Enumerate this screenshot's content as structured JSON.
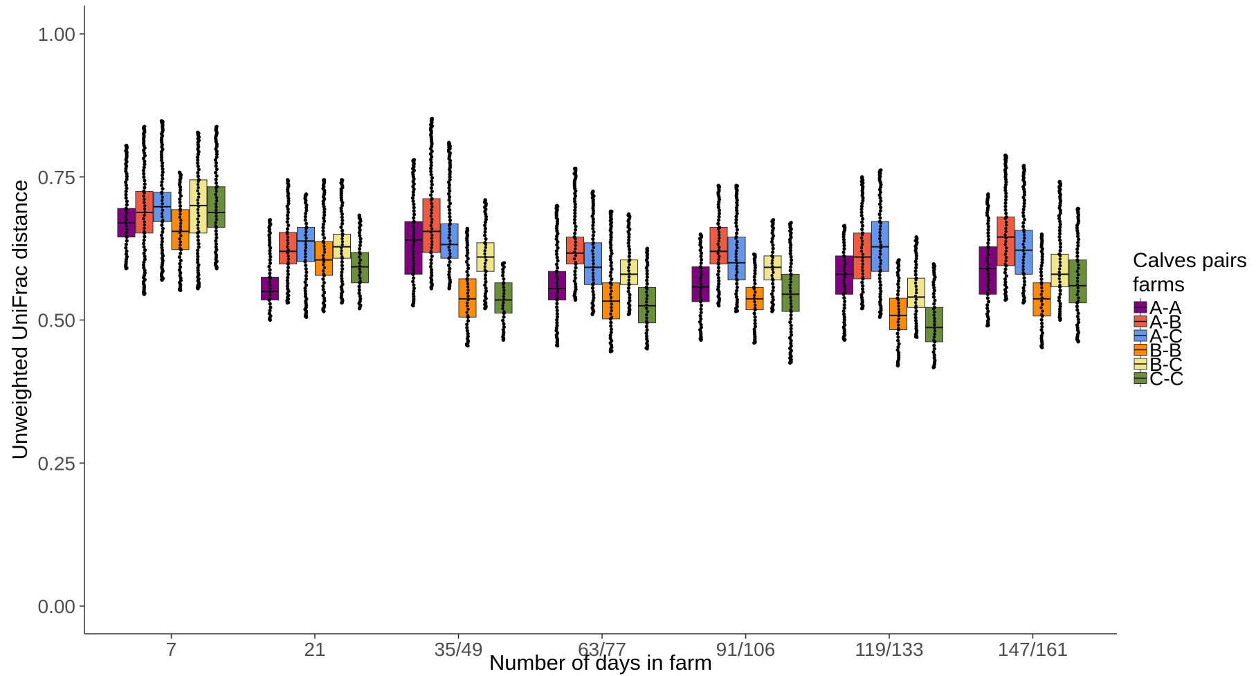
{
  "chart_data": {
    "type": "boxplot",
    "xlabel": "Number of days in farm",
    "ylabel": "Unweighted UniFrac distance",
    "ylim": [
      -0.05,
      1.05
    ],
    "yticks": [
      0.0,
      0.25,
      0.5,
      0.75,
      1.0
    ],
    "ytick_labels": [
      "0.00",
      "0.25",
      "0.50",
      "0.75",
      "1.00"
    ],
    "categories": [
      "7",
      "21",
      "35/49",
      "63/77",
      "91/106",
      "119/133",
      "147/161"
    ],
    "grid": false,
    "legend": {
      "title": "Calves pairs\nfarms",
      "title_lines": [
        "Calves pairs",
        "farms"
      ],
      "position": "right"
    },
    "series": [
      {
        "name": "A-A",
        "color": "#800080",
        "boxes": [
          {
            "q1": 0.645,
            "median": 0.67,
            "q3": 0.695,
            "whisker_low": 0.605,
            "whisker_high": 0.735,
            "outlier_min": 0.59,
            "outlier_max": 0.805
          },
          {
            "q1": 0.535,
            "median": 0.55,
            "q3": 0.575,
            "whisker_low": 0.505,
            "whisker_high": 0.62,
            "outlier_min": 0.5,
            "outlier_max": 0.675
          },
          {
            "q1": 0.58,
            "median": 0.64,
            "q3": 0.672,
            "whisker_low": 0.53,
            "whisker_high": 0.72,
            "outlier_min": 0.525,
            "outlier_max": 0.78
          },
          {
            "q1": 0.535,
            "median": 0.555,
            "q3": 0.585,
            "whisker_low": 0.49,
            "whisker_high": 0.63,
            "outlier_min": 0.455,
            "outlier_max": 0.7
          },
          {
            "q1": 0.532,
            "median": 0.558,
            "q3": 0.593,
            "whisker_low": 0.48,
            "whisker_high": 0.64,
            "outlier_min": 0.465,
            "outlier_max": 0.65
          },
          {
            "q1": 0.545,
            "median": 0.58,
            "q3": 0.612,
            "whisker_low": 0.5,
            "whisker_high": 0.65,
            "outlier_min": 0.465,
            "outlier_max": 0.665
          },
          {
            "q1": 0.545,
            "median": 0.59,
            "q3": 0.628,
            "whisker_low": 0.5,
            "whisker_high": 0.68,
            "outlier_min": 0.49,
            "outlier_max": 0.72
          }
        ]
      },
      {
        "name": "A-B",
        "color": "#F05A40",
        "boxes": [
          {
            "q1": 0.652,
            "median": 0.688,
            "q3": 0.725,
            "whisker_low": 0.6,
            "whisker_high": 0.77,
            "outlier_min": 0.545,
            "outlier_max": 0.838
          },
          {
            "q1": 0.598,
            "median": 0.62,
            "q3": 0.653,
            "whisker_low": 0.56,
            "whisker_high": 0.69,
            "outlier_min": 0.53,
            "outlier_max": 0.745
          },
          {
            "q1": 0.618,
            "median": 0.655,
            "q3": 0.712,
            "whisker_low": 0.57,
            "whisker_high": 0.78,
            "outlier_min": 0.555,
            "outlier_max": 0.852
          },
          {
            "q1": 0.598,
            "median": 0.617,
            "q3": 0.645,
            "whisker_low": 0.56,
            "whisker_high": 0.69,
            "outlier_min": 0.535,
            "outlier_max": 0.765
          },
          {
            "q1": 0.598,
            "median": 0.62,
            "q3": 0.662,
            "whisker_low": 0.55,
            "whisker_high": 0.71,
            "outlier_min": 0.525,
            "outlier_max": 0.735
          },
          {
            "q1": 0.572,
            "median": 0.61,
            "q3": 0.652,
            "whisker_low": 0.53,
            "whisker_high": 0.72,
            "outlier_min": 0.52,
            "outlier_max": 0.75
          },
          {
            "q1": 0.595,
            "median": 0.645,
            "q3": 0.68,
            "whisker_low": 0.55,
            "whisker_high": 0.74,
            "outlier_min": 0.535,
            "outlier_max": 0.788
          }
        ]
      },
      {
        "name": "A-C",
        "color": "#6495ED",
        "boxes": [
          {
            "q1": 0.672,
            "median": 0.698,
            "q3": 0.723,
            "whisker_low": 0.61,
            "whisker_high": 0.78,
            "outlier_min": 0.57,
            "outlier_max": 0.848
          },
          {
            "q1": 0.602,
            "median": 0.638,
            "q3": 0.662,
            "whisker_low": 0.56,
            "whisker_high": 0.7,
            "outlier_min": 0.505,
            "outlier_max": 0.72
          },
          {
            "q1": 0.608,
            "median": 0.632,
            "q3": 0.668,
            "whisker_low": 0.57,
            "whisker_high": 0.73,
            "outlier_min": 0.555,
            "outlier_max": 0.81
          },
          {
            "q1": 0.562,
            "median": 0.592,
            "q3": 0.635,
            "whisker_low": 0.52,
            "whisker_high": 0.69,
            "outlier_min": 0.51,
            "outlier_max": 0.725
          },
          {
            "q1": 0.57,
            "median": 0.6,
            "q3": 0.645,
            "whisker_low": 0.53,
            "whisker_high": 0.7,
            "outlier_min": 0.515,
            "outlier_max": 0.735
          },
          {
            "q1": 0.585,
            "median": 0.628,
            "q3": 0.672,
            "whisker_low": 0.53,
            "whisker_high": 0.72,
            "outlier_min": 0.505,
            "outlier_max": 0.762
          },
          {
            "q1": 0.58,
            "median": 0.622,
            "q3": 0.657,
            "whisker_low": 0.54,
            "whisker_high": 0.71,
            "outlier_min": 0.53,
            "outlier_max": 0.77
          }
        ]
      },
      {
        "name": "B-B",
        "color": "#FF8C00",
        "boxes": [
          {
            "q1": 0.623,
            "median": 0.655,
            "q3": 0.693,
            "whisker_low": 0.59,
            "whisker_high": 0.74,
            "outlier_min": 0.552,
            "outlier_max": 0.758
          },
          {
            "q1": 0.578,
            "median": 0.605,
            "q3": 0.637,
            "whisker_low": 0.54,
            "whisker_high": 0.68,
            "outlier_min": 0.515,
            "outlier_max": 0.745
          },
          {
            "q1": 0.505,
            "median": 0.537,
            "q3": 0.572,
            "whisker_low": 0.47,
            "whisker_high": 0.61,
            "outlier_min": 0.455,
            "outlier_max": 0.66
          },
          {
            "q1": 0.502,
            "median": 0.533,
            "q3": 0.565,
            "whisker_low": 0.46,
            "whisker_high": 0.61,
            "outlier_min": 0.445,
            "outlier_max": 0.69
          },
          {
            "q1": 0.518,
            "median": 0.537,
            "q3": 0.557,
            "whisker_low": 0.49,
            "whisker_high": 0.59,
            "outlier_min": 0.46,
            "outlier_max": 0.615
          },
          {
            "q1": 0.483,
            "median": 0.508,
            "q3": 0.538,
            "whisker_low": 0.44,
            "whisker_high": 0.58,
            "outlier_min": 0.42,
            "outlier_max": 0.605
          },
          {
            "q1": 0.507,
            "median": 0.537,
            "q3": 0.565,
            "whisker_low": 0.47,
            "whisker_high": 0.61,
            "outlier_min": 0.452,
            "outlier_max": 0.65
          }
        ]
      },
      {
        "name": "B-C",
        "color": "#F0E68C",
        "boxes": [
          {
            "q1": 0.652,
            "median": 0.7,
            "q3": 0.745,
            "whisker_low": 0.59,
            "whisker_high": 0.8,
            "outlier_min": 0.555,
            "outlier_max": 0.828
          },
          {
            "q1": 0.608,
            "median": 0.628,
            "q3": 0.65,
            "whisker_low": 0.57,
            "whisker_high": 0.69,
            "outlier_min": 0.53,
            "outlier_max": 0.745
          },
          {
            "q1": 0.585,
            "median": 0.61,
            "q3": 0.635,
            "whisker_low": 0.54,
            "whisker_high": 0.68,
            "outlier_min": 0.52,
            "outlier_max": 0.71
          },
          {
            "q1": 0.562,
            "median": 0.58,
            "q3": 0.605,
            "whisker_low": 0.53,
            "whisker_high": 0.64,
            "outlier_min": 0.51,
            "outlier_max": 0.685
          },
          {
            "q1": 0.57,
            "median": 0.592,
            "q3": 0.612,
            "whisker_low": 0.54,
            "whisker_high": 0.645,
            "outlier_min": 0.515,
            "outlier_max": 0.675
          },
          {
            "q1": 0.522,
            "median": 0.54,
            "q3": 0.573,
            "whisker_low": 0.49,
            "whisker_high": 0.61,
            "outlier_min": 0.47,
            "outlier_max": 0.645
          },
          {
            "q1": 0.558,
            "median": 0.58,
            "q3": 0.615,
            "whisker_low": 0.52,
            "whisker_high": 0.66,
            "outlier_min": 0.5,
            "outlier_max": 0.742
          }
        ]
      },
      {
        "name": "C-C",
        "color": "#6B8E3A",
        "boxes": [
          {
            "q1": 0.662,
            "median": 0.688,
            "q3": 0.733,
            "whisker_low": 0.6,
            "whisker_high": 0.8,
            "outlier_min": 0.59,
            "outlier_max": 0.838
          },
          {
            "q1": 0.565,
            "median": 0.593,
            "q3": 0.618,
            "whisker_low": 0.53,
            "whisker_high": 0.65,
            "outlier_min": 0.52,
            "outlier_max": 0.683
          },
          {
            "q1": 0.512,
            "median": 0.535,
            "q3": 0.565,
            "whisker_low": 0.48,
            "whisker_high": 0.59,
            "outlier_min": 0.465,
            "outlier_max": 0.6
          },
          {
            "q1": 0.495,
            "median": 0.525,
            "q3": 0.557,
            "whisker_low": 0.46,
            "whisker_high": 0.6,
            "outlier_min": 0.45,
            "outlier_max": 0.625
          },
          {
            "q1": 0.515,
            "median": 0.545,
            "q3": 0.58,
            "whisker_low": 0.47,
            "whisker_high": 0.64,
            "outlier_min": 0.425,
            "outlier_max": 0.67
          },
          {
            "q1": 0.462,
            "median": 0.487,
            "q3": 0.522,
            "whisker_low": 0.43,
            "whisker_high": 0.57,
            "outlier_min": 0.417,
            "outlier_max": 0.598
          },
          {
            "q1": 0.53,
            "median": 0.56,
            "q3": 0.605,
            "whisker_low": 0.48,
            "whisker_high": 0.65,
            "outlier_min": 0.462,
            "outlier_max": 0.695
          }
        ]
      }
    ]
  }
}
